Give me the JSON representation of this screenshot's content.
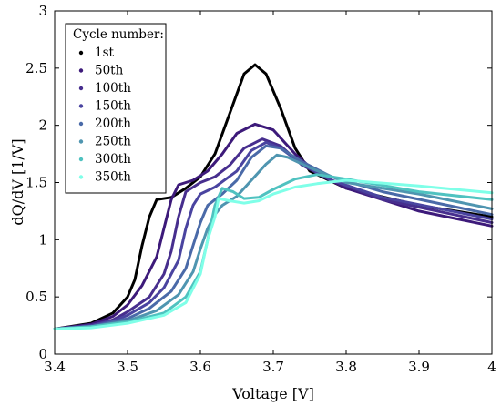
{
  "chart_data": {
    "type": "line",
    "xlabel": "Voltage [V]",
    "ylabel": "dQ/dV [1/V]",
    "xlim": [
      3.4,
      4.0
    ],
    "ylim": [
      0,
      3
    ],
    "x_ticks": [
      "3.4",
      "3.5",
      "3.6",
      "3.7",
      "3.8",
      "3.9",
      "4"
    ],
    "y_ticks": [
      "0",
      "0.5",
      "1",
      "1.5",
      "2",
      "2.5",
      "3"
    ],
    "grid": false,
    "legend": {
      "title": "Cycle number:",
      "placement": "top-left"
    },
    "series": [
      {
        "name": "1st",
        "color": "#000000",
        "points": [
          [
            3.4,
            0.22
          ],
          [
            3.45,
            0.27
          ],
          [
            3.48,
            0.36
          ],
          [
            3.5,
            0.5
          ],
          [
            3.51,
            0.65
          ],
          [
            3.52,
            0.95
          ],
          [
            3.53,
            1.2
          ],
          [
            3.54,
            1.35
          ],
          [
            3.56,
            1.37
          ],
          [
            3.58,
            1.45
          ],
          [
            3.6,
            1.55
          ],
          [
            3.62,
            1.75
          ],
          [
            3.64,
            2.1
          ],
          [
            3.66,
            2.45
          ],
          [
            3.675,
            2.53
          ],
          [
            3.69,
            2.45
          ],
          [
            3.71,
            2.15
          ],
          [
            3.73,
            1.8
          ],
          [
            3.75,
            1.6
          ],
          [
            3.8,
            1.45
          ],
          [
            3.9,
            1.3
          ],
          [
            4.0,
            1.2
          ]
        ]
      },
      {
        "name": "50th",
        "color": "#3d1a7a",
        "points": [
          [
            3.4,
            0.22
          ],
          [
            3.45,
            0.26
          ],
          [
            3.48,
            0.33
          ],
          [
            3.5,
            0.43
          ],
          [
            3.52,
            0.6
          ],
          [
            3.54,
            0.85
          ],
          [
            3.55,
            1.1
          ],
          [
            3.56,
            1.35
          ],
          [
            3.57,
            1.48
          ],
          [
            3.59,
            1.52
          ],
          [
            3.61,
            1.6
          ],
          [
            3.63,
            1.75
          ],
          [
            3.65,
            1.93
          ],
          [
            3.675,
            2.01
          ],
          [
            3.7,
            1.96
          ],
          [
            3.73,
            1.75
          ],
          [
            3.76,
            1.58
          ],
          [
            3.8,
            1.45
          ],
          [
            3.9,
            1.25
          ],
          [
            4.0,
            1.12
          ]
        ]
      },
      {
        "name": "100th",
        "color": "#472e8e",
        "points": [
          [
            3.4,
            0.22
          ],
          [
            3.45,
            0.25
          ],
          [
            3.48,
            0.3
          ],
          [
            3.5,
            0.37
          ],
          [
            3.53,
            0.5
          ],
          [
            3.55,
            0.7
          ],
          [
            3.56,
            0.9
          ],
          [
            3.57,
            1.2
          ],
          [
            3.58,
            1.42
          ],
          [
            3.6,
            1.5
          ],
          [
            3.62,
            1.55
          ],
          [
            3.64,
            1.65
          ],
          [
            3.66,
            1.8
          ],
          [
            3.685,
            1.88
          ],
          [
            3.71,
            1.82
          ],
          [
            3.74,
            1.65
          ],
          [
            3.78,
            1.52
          ],
          [
            3.85,
            1.35
          ],
          [
            4.0,
            1.15
          ]
        ]
      },
      {
        "name": "150th",
        "color": "#4a44a0",
        "points": [
          [
            3.4,
            0.22
          ],
          [
            3.45,
            0.25
          ],
          [
            3.48,
            0.29
          ],
          [
            3.5,
            0.34
          ],
          [
            3.53,
            0.45
          ],
          [
            3.55,
            0.58
          ],
          [
            3.57,
            0.82
          ],
          [
            3.58,
            1.1
          ],
          [
            3.59,
            1.3
          ],
          [
            3.6,
            1.4
          ],
          [
            3.62,
            1.46
          ],
          [
            3.65,
            1.6
          ],
          [
            3.67,
            1.78
          ],
          [
            3.69,
            1.85
          ],
          [
            3.71,
            1.8
          ],
          [
            3.74,
            1.66
          ],
          [
            3.78,
            1.52
          ],
          [
            3.85,
            1.37
          ],
          [
            4.0,
            1.18
          ]
        ]
      },
      {
        "name": "200th",
        "color": "#4a6aa8",
        "points": [
          [
            3.4,
            0.22
          ],
          [
            3.45,
            0.24
          ],
          [
            3.5,
            0.31
          ],
          [
            3.53,
            0.4
          ],
          [
            3.56,
            0.55
          ],
          [
            3.58,
            0.75
          ],
          [
            3.59,
            0.95
          ],
          [
            3.6,
            1.15
          ],
          [
            3.61,
            1.3
          ],
          [
            3.63,
            1.4
          ],
          [
            3.65,
            1.52
          ],
          [
            3.67,
            1.72
          ],
          [
            3.69,
            1.82
          ],
          [
            3.71,
            1.8
          ],
          [
            3.74,
            1.68
          ],
          [
            3.78,
            1.55
          ],
          [
            3.85,
            1.42
          ],
          [
            4.0,
            1.22
          ]
        ]
      },
      {
        "name": "250th",
        "color": "#4f95b0",
        "points": [
          [
            3.4,
            0.22
          ],
          [
            3.45,
            0.24
          ],
          [
            3.5,
            0.29
          ],
          [
            3.54,
            0.38
          ],
          [
            3.57,
            0.52
          ],
          [
            3.59,
            0.72
          ],
          [
            3.6,
            0.92
          ],
          [
            3.61,
            1.1
          ],
          [
            3.62,
            1.22
          ],
          [
            3.63,
            1.3
          ],
          [
            3.65,
            1.38
          ],
          [
            3.67,
            1.52
          ],
          [
            3.69,
            1.66
          ],
          [
            3.705,
            1.74
          ],
          [
            3.72,
            1.72
          ],
          [
            3.75,
            1.63
          ],
          [
            3.8,
            1.5
          ],
          [
            3.9,
            1.4
          ],
          [
            4.0,
            1.27
          ]
        ]
      },
      {
        "name": "300th",
        "color": "#4fc2c0",
        "points": [
          [
            3.4,
            0.22
          ],
          [
            3.45,
            0.24
          ],
          [
            3.5,
            0.28
          ],
          [
            3.55,
            0.36
          ],
          [
            3.58,
            0.5
          ],
          [
            3.6,
            0.72
          ],
          [
            3.61,
            1.0
          ],
          [
            3.62,
            1.3
          ],
          [
            3.63,
            1.45
          ],
          [
            3.645,
            1.42
          ],
          [
            3.66,
            1.36
          ],
          [
            3.68,
            1.37
          ],
          [
            3.7,
            1.44
          ],
          [
            3.73,
            1.53
          ],
          [
            3.76,
            1.57
          ],
          [
            3.8,
            1.53
          ],
          [
            3.9,
            1.42
          ],
          [
            4.0,
            1.35
          ]
        ]
      },
      {
        "name": "350th",
        "color": "#7fffe8",
        "points": [
          [
            3.4,
            0.22
          ],
          [
            3.45,
            0.23
          ],
          [
            3.5,
            0.27
          ],
          [
            3.55,
            0.34
          ],
          [
            3.58,
            0.45
          ],
          [
            3.6,
            0.7
          ],
          [
            3.61,
            1.0
          ],
          [
            3.62,
            1.2
          ],
          [
            3.625,
            1.36
          ],
          [
            3.64,
            1.34
          ],
          [
            3.66,
            1.32
          ],
          [
            3.68,
            1.34
          ],
          [
            3.7,
            1.4
          ],
          [
            3.73,
            1.46
          ],
          [
            3.76,
            1.49
          ],
          [
            3.8,
            1.52
          ],
          [
            3.9,
            1.47
          ],
          [
            4.0,
            1.41
          ]
        ]
      }
    ]
  }
}
